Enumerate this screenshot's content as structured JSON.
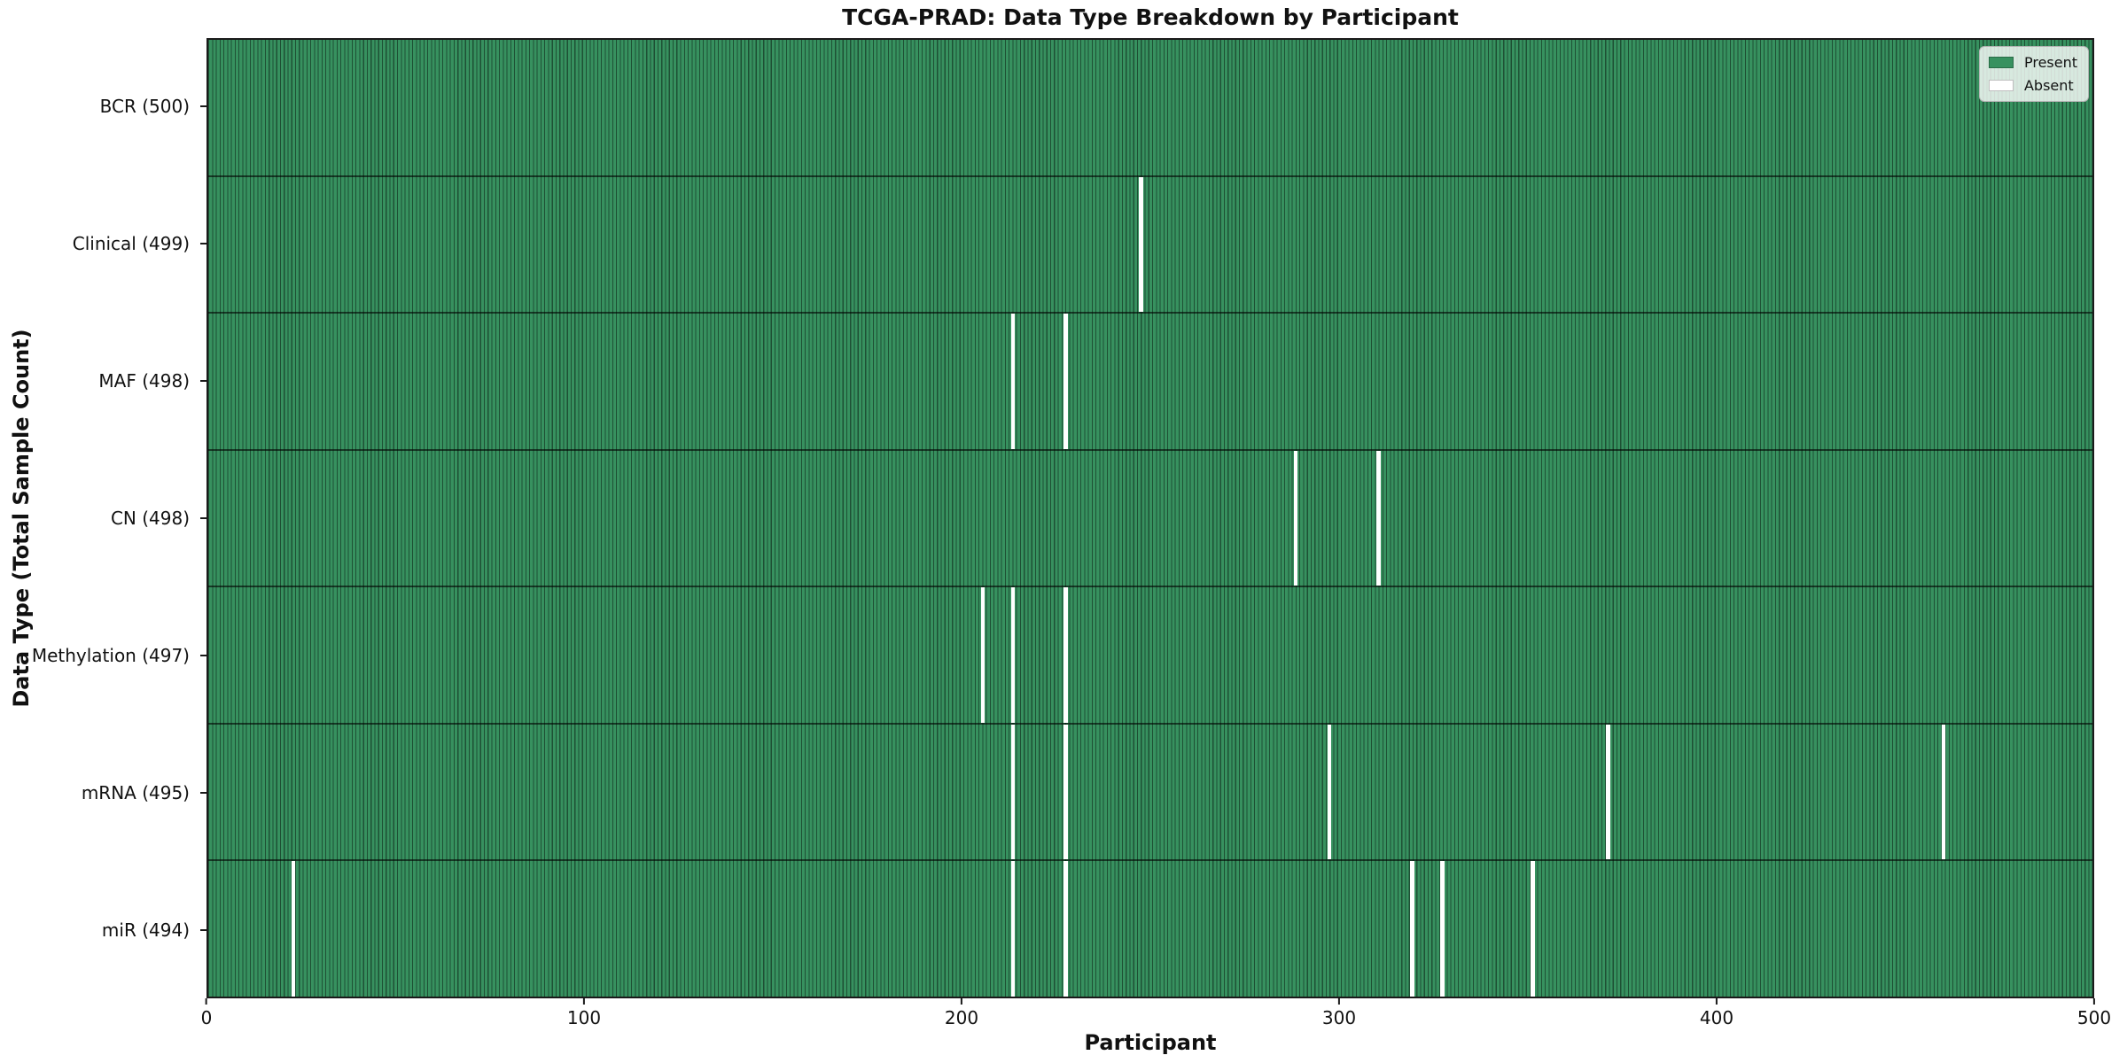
{
  "title": "TCGA-PRAD: Data Type Breakdown by Participant",
  "xlabel": "Participant",
  "ylabel": "Data Type (Total Sample Count)",
  "colors": {
    "present": "#37915f",
    "absent": "#ffffff",
    "bar_edge": "rgba(0,0,0,0.45)",
    "axis": "#1a1a1a"
  },
  "legend": {
    "items": [
      {
        "label": "Present",
        "color": "#37915f"
      },
      {
        "label": "Absent",
        "color": "#ffffff"
      }
    ]
  },
  "chart_data": {
    "type": "heatmap",
    "title": "TCGA-PRAD: Data Type Breakdown by Participant",
    "xlabel": "Participant",
    "ylabel": "Data Type (Total Sample Count)",
    "x_range": [
      0,
      500
    ],
    "x_ticks": [
      0,
      100,
      200,
      300,
      400,
      500
    ],
    "n_participants": 500,
    "legend_position": "upper right",
    "grid": false,
    "rows": [
      {
        "label": "BCR (500)",
        "data_type": "BCR",
        "total": 500,
        "absent_participants": []
      },
      {
        "label": "Clinical (499)",
        "data_type": "Clinical",
        "total": 499,
        "absent_participants": [
          247
        ]
      },
      {
        "label": "MAF (498)",
        "data_type": "MAF",
        "total": 498,
        "absent_participants": [
          213,
          227
        ]
      },
      {
        "label": "CN (498)",
        "data_type": "CN",
        "total": 498,
        "absent_participants": [
          288,
          310
        ]
      },
      {
        "label": "Methylation (497)",
        "data_type": "Methylation",
        "total": 497,
        "absent_participants": [
          205,
          213,
          227
        ]
      },
      {
        "label": "mRNA (495)",
        "data_type": "mRNA",
        "total": 495,
        "absent_participants": [
          213,
          227,
          297,
          371,
          460
        ]
      },
      {
        "label": "miR (494)",
        "data_type": "miR",
        "total": 494,
        "absent_participants": [
          22,
          213,
          227,
          319,
          327,
          351
        ]
      }
    ]
  }
}
